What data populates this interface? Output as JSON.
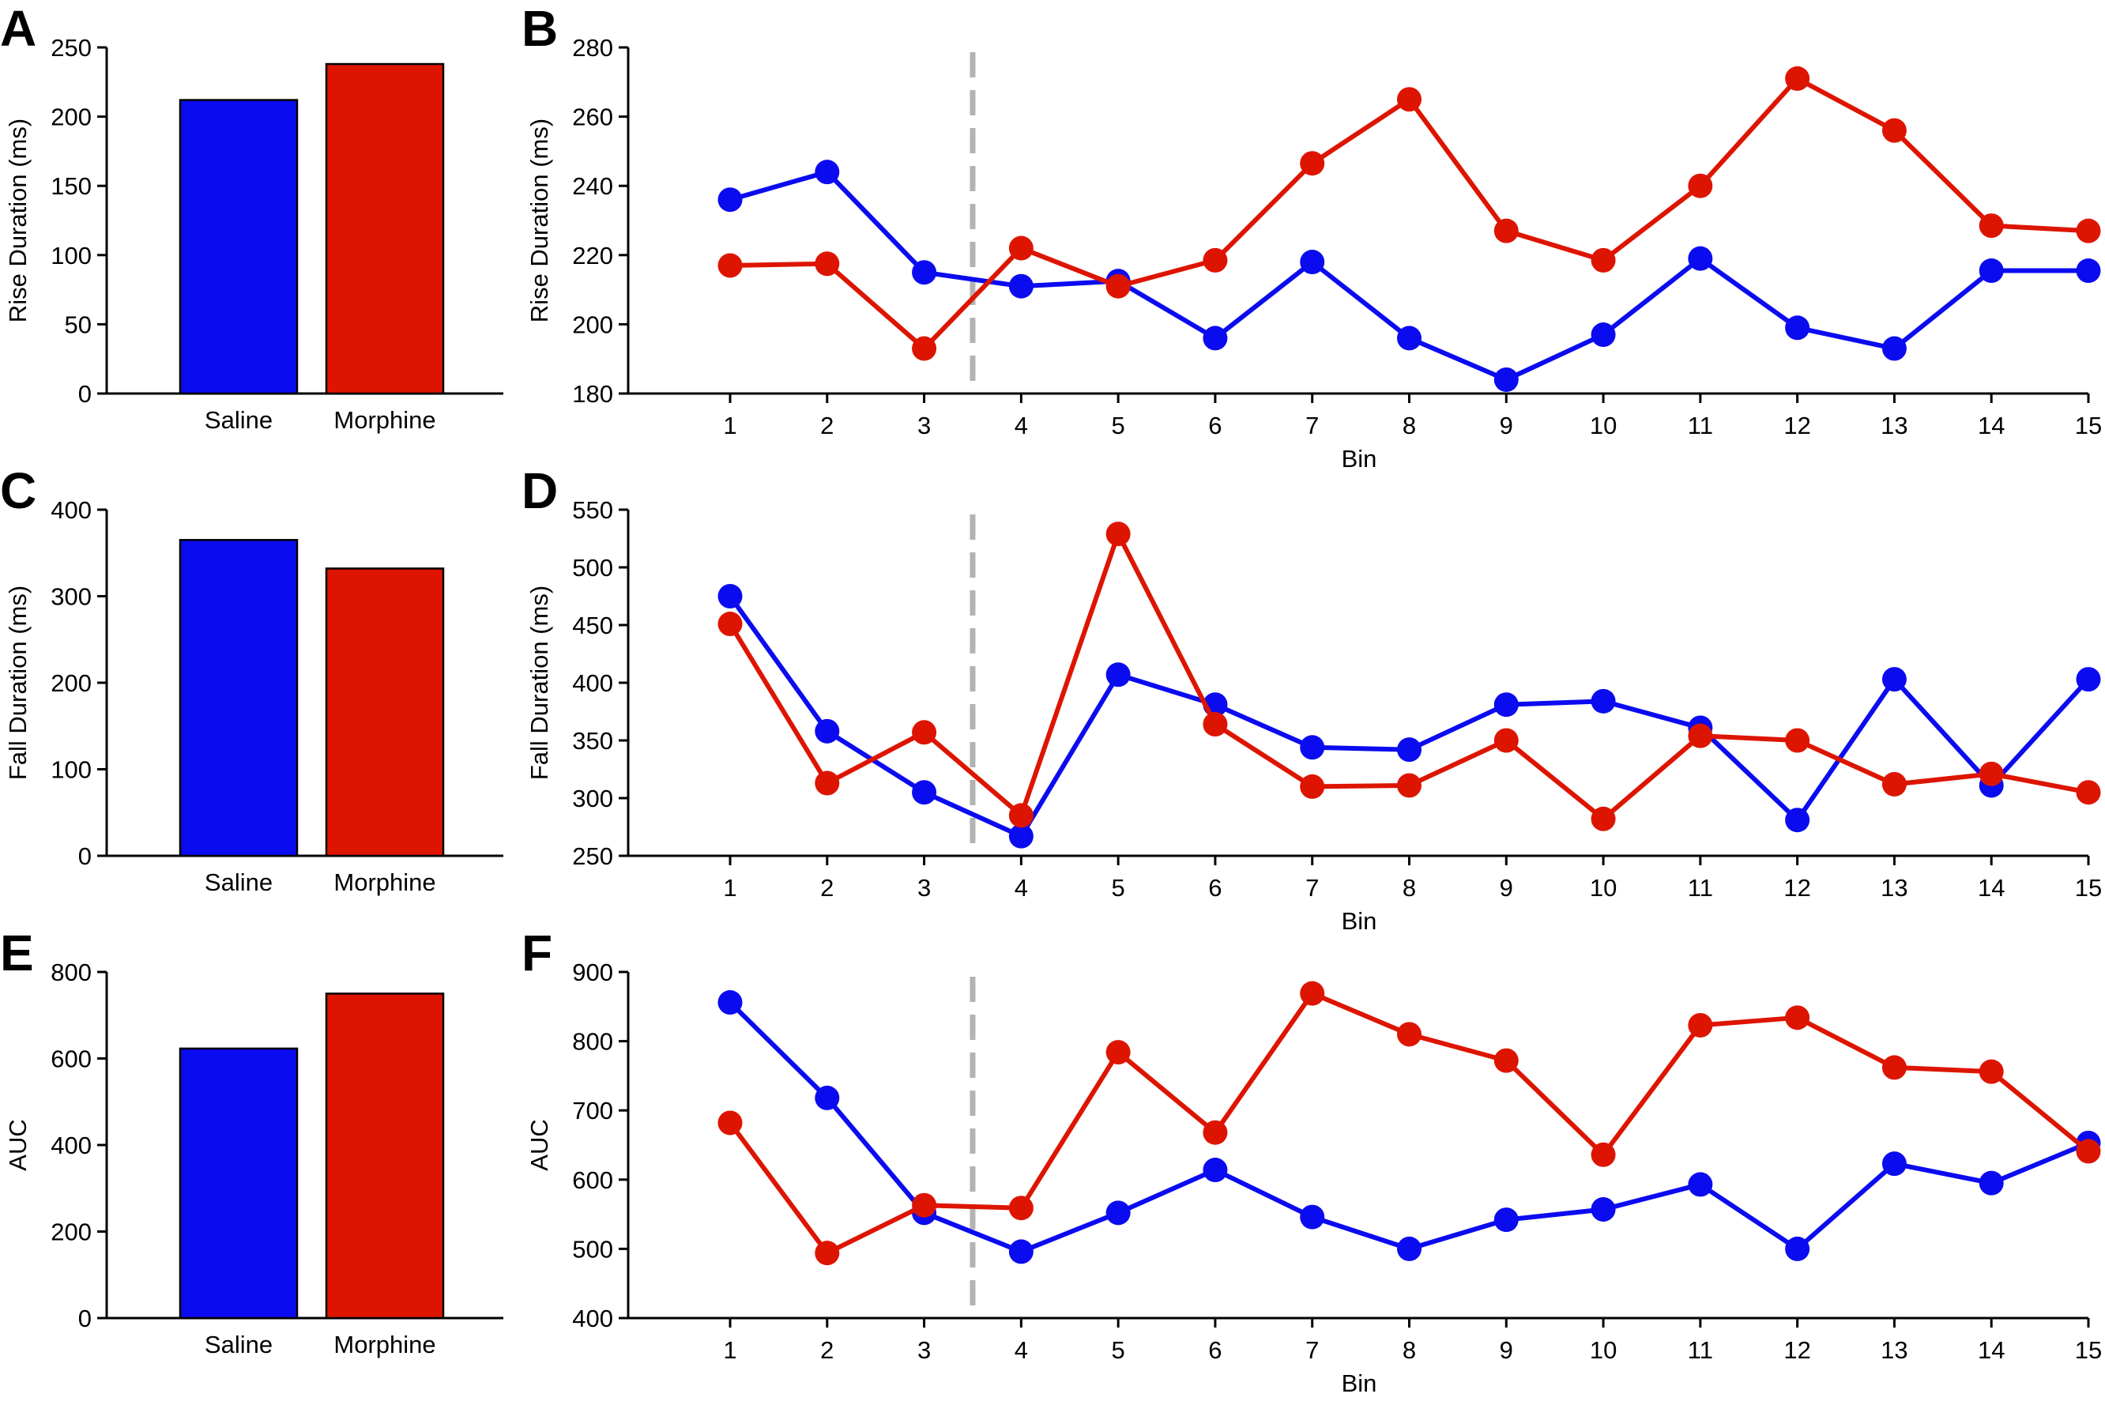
{
  "colors": {
    "saline": "#0b0bf0",
    "morphine": "#dd1500",
    "divider": "#b3b3b3"
  },
  "chart_data": [
    {
      "panel": "A",
      "type": "bar",
      "categories": [
        "Saline",
        "Morphine"
      ],
      "values": [
        212,
        238
      ],
      "ylabel": "Rise Duration (ms)",
      "xlabel": "",
      "ylim": [
        0,
        250
      ],
      "yticks": [
        0,
        50,
        100,
        150,
        200,
        250
      ]
    },
    {
      "panel": "B",
      "type": "line",
      "x": [
        1,
        2,
        3,
        4,
        5,
        6,
        7,
        8,
        9,
        10,
        11,
        12,
        13,
        14,
        15
      ],
      "series": [
        {
          "name": "Saline",
          "color": "saline",
          "values": [
            236,
            244,
            215,
            211,
            212.5,
            196,
            218,
            196,
            184,
            197,
            219,
            199,
            193,
            215.5,
            215.5
          ]
        },
        {
          "name": "Morphine",
          "color": "morphine",
          "values": [
            217,
            217.5,
            193,
            222,
            211,
            218.5,
            246.5,
            265,
            227,
            218.5,
            240,
            271,
            256,
            228.5,
            227
          ]
        }
      ],
      "ylabel": "Rise Duration (ms)",
      "xlabel": "Bin",
      "ylim": [
        180,
        280
      ],
      "yticks": [
        180,
        200,
        220,
        240,
        260,
        280
      ],
      "divider_at": 3.5
    },
    {
      "panel": "C",
      "type": "bar",
      "categories": [
        "Saline",
        "Morphine"
      ],
      "values": [
        365,
        332
      ],
      "ylabel": "Fall Duration (ms)",
      "xlabel": "",
      "ylim": [
        0,
        400
      ],
      "yticks": [
        0,
        100,
        200,
        300,
        400
      ]
    },
    {
      "panel": "D",
      "type": "line",
      "x": [
        1,
        2,
        3,
        4,
        5,
        6,
        7,
        8,
        9,
        10,
        11,
        12,
        13,
        14,
        15
      ],
      "series": [
        {
          "name": "Saline",
          "color": "saline",
          "values": [
            475,
            358,
            305,
            267,
            407,
            381,
            344,
            342,
            381,
            384,
            361,
            281,
            403,
            311,
            403
          ]
        },
        {
          "name": "Morphine",
          "color": "morphine",
          "values": [
            451,
            313,
            357,
            285,
            529,
            364,
            310,
            311,
            350,
            282,
            354,
            350,
            312,
            321,
            305
          ]
        }
      ],
      "ylabel": "Fall Duration (ms)",
      "xlabel": "Bin",
      "ylim": [
        250,
        550
      ],
      "yticks": [
        250,
        300,
        350,
        400,
        450,
        500,
        550
      ],
      "divider_at": 3.5
    },
    {
      "panel": "E",
      "type": "bar",
      "categories": [
        "Saline",
        "Morphine"
      ],
      "values": [
        623,
        750
      ],
      "ylabel": "AUC",
      "xlabel": "",
      "ylim": [
        0,
        800
      ],
      "yticks": [
        0,
        200,
        400,
        600,
        800
      ]
    },
    {
      "panel": "F",
      "type": "line",
      "x": [
        1,
        2,
        3,
        4,
        5,
        6,
        7,
        8,
        9,
        10,
        11,
        12,
        13,
        14,
        15
      ],
      "series": [
        {
          "name": "Saline",
          "color": "saline",
          "values": [
            856,
            718,
            552,
            496,
            552,
            614,
            546,
            500,
            542,
            557,
            593,
            500,
            623,
            595,
            653
          ]
        },
        {
          "name": "Morphine",
          "color": "morphine",
          "values": [
            682,
            494,
            563,
            559,
            784,
            668,
            869,
            810,
            772,
            636,
            823,
            834,
            762,
            756,
            641
          ]
        }
      ],
      "ylabel": "AUC",
      "xlabel": "Bin",
      "ylim": [
        400,
        900
      ],
      "yticks": [
        400,
        500,
        600,
        700,
        800,
        900
      ],
      "divider_at": 3.5
    }
  ]
}
